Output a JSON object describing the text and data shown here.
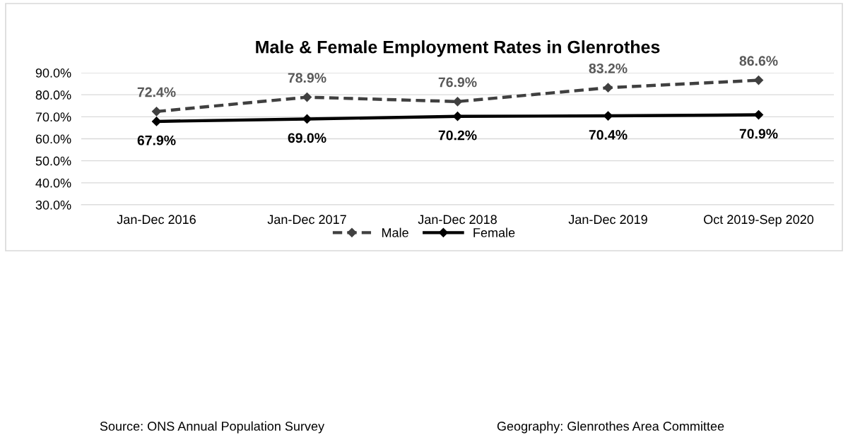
{
  "chart_data": {
    "type": "line",
    "title": "Male & Female Employment Rates in Glenrothes",
    "categories": [
      "Jan-Dec 2016",
      "Jan-Dec 2017",
      "Jan-Dec 2018",
      "Jan-Dec 2019",
      "Oct 2019-Sep 2020"
    ],
    "series": [
      {
        "name": "Male",
        "color": "#404040",
        "line_style": "dashed",
        "values": [
          72.4,
          78.9,
          76.9,
          83.2,
          86.6
        ],
        "value_labels": [
          "72.4%",
          "78.9%",
          "76.9%",
          "83.2%",
          "86.6%"
        ]
      },
      {
        "name": "Female",
        "color": "#000000",
        "line_style": "solid",
        "values": [
          67.9,
          69.0,
          70.2,
          70.4,
          70.9
        ],
        "value_labels": [
          "67.9%",
          "69.0%",
          "70.2%",
          "70.4%",
          "70.9%"
        ]
      }
    ],
    "marker": "diamond",
    "ylim": [
      30,
      90
    ],
    "yticks": [
      {
        "value": 30,
        "label": "30.0%"
      },
      {
        "value": 40,
        "label": "40.0%"
      },
      {
        "value": 50,
        "label": "50.0%"
      },
      {
        "value": 60,
        "label": "60.0%"
      },
      {
        "value": 70,
        "label": "70.0%"
      },
      {
        "value": 80,
        "label": "80.0%"
      },
      {
        "value": 90,
        "label": "90.0%"
      }
    ],
    "grid": "y",
    "legend": "bottom",
    "annotations": [
      "Source: ONS Annual Population Survey",
      "Geography: Glenrothes Area Committee"
    ]
  }
}
